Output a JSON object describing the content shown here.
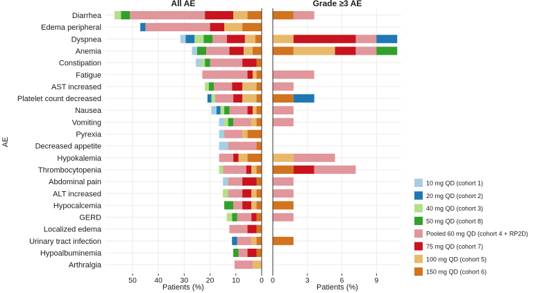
{
  "chart_data": {
    "type": "bar",
    "orientation": "horizontal",
    "stacked": true,
    "ylabel": "AE",
    "categories": [
      "Diarrhea",
      "Edema peripheral",
      "Dyspnea",
      "Anemia",
      "Constipation",
      "Fatigue",
      "AST increased",
      "Platelet count decreased",
      "Nausea",
      "Vomiting",
      "Pyrexia",
      "Decreased appetite",
      "Hypokalemia",
      "Thrombocytopenia",
      "Abdominal pain",
      "ALT increased",
      "Hypocalcemia",
      "GERD",
      "Localized edema",
      "Urinary tract infection",
      "Hypoalbuminemia",
      "Arthralgia"
    ],
    "cohorts": [
      {
        "name": "10 mg QD (cohort 1)",
        "color": "#a6cee3"
      },
      {
        "name": "20 mg QD (cohort 2)",
        "color": "#1f78b4"
      },
      {
        "name": "40 mg QD (cohort 3)",
        "color": "#b2df8a"
      },
      {
        "name": "50 mg QD (cohort 8)",
        "color": "#33a02c"
      },
      {
        "name": "Pooled 60 mg QD (cohort 4 + RP2D)",
        "color": "#e0969a"
      },
      {
        "name": "75 mg QD (cohort 7)",
        "color": "#c8141e"
      },
      {
        "name": "100 mg QD (cohort 5)",
        "color": "#e8b96a"
      },
      {
        "name": "150 mg QD (cohort 6)",
        "color": "#d2731e"
      }
    ],
    "panels": [
      {
        "title": "All AE",
        "xlabel": "Patients (%)",
        "xlim": [
          0,
          58
        ],
        "reversed": true,
        "ticks": [
          0,
          10,
          20,
          30,
          40,
          50
        ],
        "values": [
          [
            0,
            0,
            2.5,
            3.5,
            29,
            11,
            5.5,
            5.5
          ],
          [
            0,
            2,
            0,
            0,
            25,
            5.5,
            7,
            7.5
          ],
          [
            2,
            3.5,
            3.5,
            3.5,
            5.5,
            7,
            4,
            2.5
          ],
          [
            2,
            0,
            0,
            3.5,
            9,
            5.5,
            3.5,
            3.5
          ],
          [
            2,
            0,
            1.5,
            2,
            12.5,
            5.5,
            0,
            2
          ],
          [
            0,
            0,
            0,
            0,
            17.5,
            2,
            1.5,
            2
          ],
          [
            0,
            0,
            1.5,
            2,
            7,
            4,
            5.5,
            2
          ],
          [
            0,
            1.5,
            1.5,
            0,
            7,
            3.5,
            5.5,
            2
          ],
          [
            2,
            1.5,
            1.5,
            2,
            7,
            2,
            1.5,
            2
          ],
          [
            2,
            0,
            1.5,
            2,
            7,
            0,
            2,
            2
          ],
          [
            2,
            0,
            0,
            0,
            7,
            0,
            2,
            5.5
          ],
          [
            3.5,
            0,
            0,
            0,
            11,
            0,
            0,
            2
          ],
          [
            0,
            0,
            0,
            0,
            5.5,
            2,
            3.5,
            5.5
          ],
          [
            0,
            0,
            1.5,
            0,
            9,
            2,
            2,
            2
          ],
          [
            2,
            0,
            0,
            0,
            5.5,
            5.5,
            0,
            2
          ],
          [
            0,
            0,
            2,
            0,
            5.5,
            3.5,
            2,
            2
          ],
          [
            0,
            0,
            0,
            3.5,
            3.5,
            3.5,
            2,
            2
          ],
          [
            0,
            0,
            2,
            2,
            5.5,
            2,
            0,
            2
          ],
          [
            0,
            0,
            0,
            0,
            7,
            3.5,
            0,
            2
          ],
          [
            0,
            2,
            0,
            0,
            5.5,
            0,
            2,
            2
          ],
          [
            0,
            0,
            0,
            2,
            3.5,
            3.5,
            0,
            2
          ],
          [
            0,
            0,
            0,
            0,
            7,
            0,
            3.5,
            0
          ]
        ]
      },
      {
        "title": "Grade ≥3 AE",
        "xlabel": "Patients (%)",
        "xlim": [
          0,
          11
        ],
        "reversed": false,
        "ticks": [
          0,
          3,
          6,
          9
        ],
        "values": [
          [
            0,
            0,
            0,
            0,
            1.8,
            0,
            0,
            1.8
          ],
          [
            0,
            0,
            0,
            0,
            0,
            0,
            0,
            0
          ],
          [
            0,
            1.8,
            0,
            0,
            1.8,
            5.4,
            1.8,
            0
          ],
          [
            0,
            0,
            0,
            1.8,
            1.8,
            1.8,
            3.6,
            1.8
          ],
          [
            0,
            0,
            0,
            0,
            0,
            0,
            0,
            0
          ],
          [
            0,
            0,
            0,
            0,
            3.6,
            0,
            0,
            0
          ],
          [
            0,
            0,
            0,
            0,
            1.8,
            0,
            0,
            0
          ],
          [
            0,
            1.8,
            0,
            0,
            0,
            0,
            0,
            1.8
          ],
          [
            0,
            0,
            0,
            0,
            1.8,
            0,
            0,
            0
          ],
          [
            0,
            0,
            0,
            0,
            1.8,
            0,
            0,
            0
          ],
          [
            0,
            0,
            0,
            0,
            0,
            0,
            0,
            0
          ],
          [
            0,
            0,
            0,
            0,
            0,
            0,
            0,
            0
          ],
          [
            0,
            0,
            0,
            0,
            3.6,
            0,
            1.8,
            0
          ],
          [
            0,
            0,
            0,
            0,
            3.6,
            1.8,
            0,
            1.8
          ],
          [
            0,
            0,
            0,
            0,
            1.8,
            0,
            0,
            0
          ],
          [
            0,
            0,
            0,
            0,
            1.8,
            0,
            0,
            0
          ],
          [
            0,
            0,
            0,
            0,
            0,
            0,
            0,
            1.8
          ],
          [
            0,
            0,
            0,
            0,
            1.8,
            0,
            0,
            0
          ],
          [
            0,
            0,
            0,
            0,
            0,
            0,
            0,
            0
          ],
          [
            0,
            0,
            0,
            0,
            0,
            0,
            0,
            1.8
          ],
          [
            0,
            0,
            0,
            0,
            0,
            0,
            0,
            0
          ],
          [
            0,
            0,
            0,
            0,
            0,
            0,
            0,
            0
          ]
        ]
      }
    ]
  }
}
